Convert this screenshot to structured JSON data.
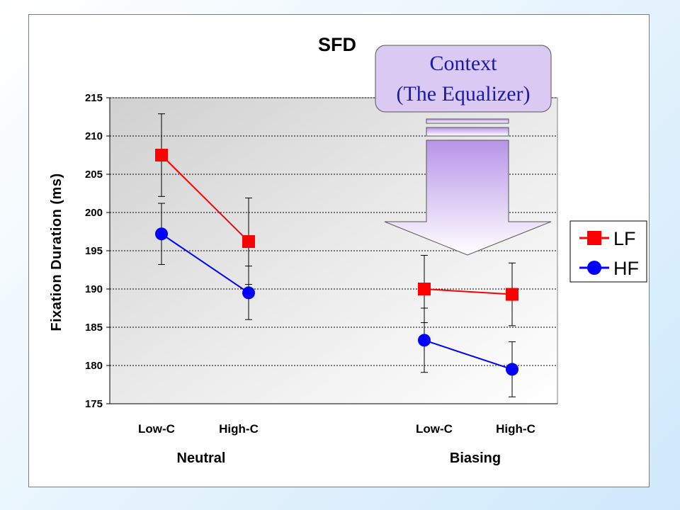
{
  "chart_data": {
    "type": "line",
    "title": "SFD",
    "ylabel": "Fixation Duration (ms)",
    "xlabel": "",
    "ylim": [
      175,
      215
    ],
    "yticks": [
      175,
      180,
      185,
      190,
      195,
      200,
      205,
      210,
      215
    ],
    "grid": true,
    "legend_position": "right",
    "groups": [
      {
        "label": "Neutral",
        "categories": [
          "Low-C",
          "High-C"
        ]
      },
      {
        "label": "Biasing",
        "categories": [
          "Low-C",
          "High-C"
        ]
      }
    ],
    "series": [
      {
        "name": "LF",
        "color": "#ff0000",
        "marker": "square",
        "values": [
          [
            207.5,
            196.2
          ],
          [
            190.0,
            189.3
          ]
        ],
        "error_low": [
          [
            202.1,
            190.6
          ],
          [
            185.6,
            185.2
          ]
        ],
        "error_high": [
          [
            212.9,
            201.9
          ],
          [
            194.4,
            193.4
          ]
        ]
      },
      {
        "name": "HF",
        "color": "#0000ff",
        "marker": "circle",
        "values": [
          [
            197.2,
            189.5
          ],
          [
            183.3,
            179.5
          ]
        ],
        "error_low": [
          [
            193.2,
            186.0
          ],
          [
            179.1,
            175.9
          ]
        ],
        "error_high": [
          [
            201.2,
            193.0
          ],
          [
            187.5,
            183.1
          ]
        ]
      }
    ]
  },
  "callout": {
    "line1": "Context",
    "line2": "(The Equalizer)"
  },
  "colors": {
    "callout_fill": "#d9c9f3",
    "callout_text": "#1a1aa8",
    "arrow_top": "#b794e8",
    "arrow_bottom": "#ffffff"
  }
}
